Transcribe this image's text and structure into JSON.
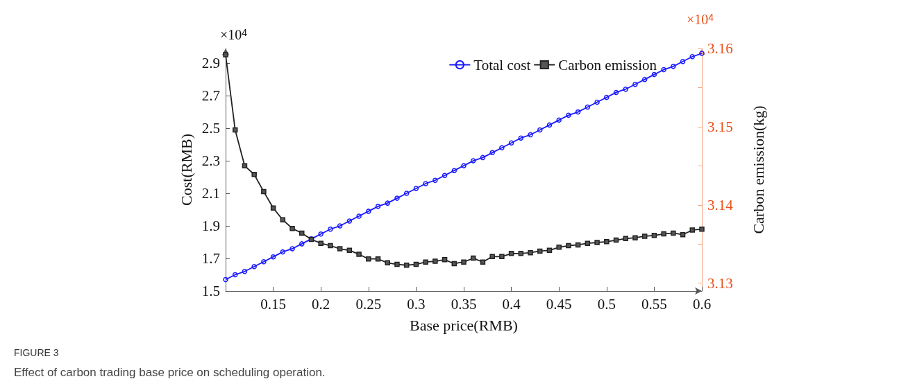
{
  "chart_data": {
    "type": "line",
    "xlabel": "Base price(RMB)",
    "ylabel": "Cost(RMB)",
    "y2label": "Carbon emission(kg)",
    "x": [
      0.1,
      0.11,
      0.12,
      0.13,
      0.14,
      0.15,
      0.16,
      0.17,
      0.18,
      0.19,
      0.2,
      0.21,
      0.22,
      0.23,
      0.24,
      0.25,
      0.26,
      0.27,
      0.28,
      0.29,
      0.3,
      0.31,
      0.32,
      0.33,
      0.34,
      0.35,
      0.36,
      0.37,
      0.38,
      0.39,
      0.4,
      0.41,
      0.42,
      0.43,
      0.44,
      0.45,
      0.46,
      0.47,
      0.48,
      0.49,
      0.5,
      0.51,
      0.52,
      0.53,
      0.54,
      0.55,
      0.56,
      0.57,
      0.58,
      0.59,
      0.6
    ],
    "series": [
      {
        "name": "Total cost",
        "color": "#1a1aff",
        "marker": "circle",
        "values": [
          1.57,
          1.6,
          1.62,
          1.65,
          1.68,
          1.71,
          1.74,
          1.76,
          1.79,
          1.82,
          1.85,
          1.88,
          1.9,
          1.93,
          1.96,
          1.99,
          2.02,
          2.04,
          2.07,
          2.1,
          2.13,
          2.16,
          2.18,
          2.21,
          2.24,
          2.27,
          2.3,
          2.32,
          2.35,
          2.38,
          2.41,
          2.44,
          2.46,
          2.49,
          2.52,
          2.55,
          2.58,
          2.6,
          2.63,
          2.66,
          2.69,
          2.72,
          2.74,
          2.77,
          2.8,
          2.83,
          2.86,
          2.88,
          2.91,
          2.94,
          2.96
        ]
      },
      {
        "name": "Carbon emission",
        "color": "#222222",
        "marker": "square",
        "axis": "y2",
        "values": [
          3.1592,
          3.1496,
          3.145,
          3.1439,
          3.1417,
          3.1396,
          3.1381,
          3.137,
          3.1364,
          3.1356,
          3.1351,
          3.1348,
          3.1344,
          3.1342,
          3.1337,
          3.1331,
          3.1331,
          3.1326,
          3.1324,
          3.1323,
          3.1324,
          3.1327,
          3.1328,
          3.133,
          3.1325,
          3.1327,
          3.1332,
          3.1327,
          3.1334,
          3.1334,
          3.1338,
          3.1338,
          3.1339,
          3.1341,
          3.1342,
          3.1346,
          3.1348,
          3.1349,
          3.1351,
          3.1352,
          3.1353,
          3.1355,
          3.1357,
          3.1358,
          3.136,
          3.1361,
          3.1363,
          3.1364,
          3.1362,
          3.1368,
          3.1369
        ]
      }
    ],
    "xlim": [
      0.1,
      0.6
    ],
    "xticks": [
      0.15,
      0.2,
      0.25,
      0.3,
      0.35,
      0.4,
      0.45,
      0.5,
      0.55,
      0.6
    ],
    "ylim": [
      1.5,
      2.99
    ],
    "yticks": [
      1.5,
      1.7,
      1.9,
      2.1,
      2.3,
      2.5,
      2.7,
      2.9
    ],
    "y2lim": [
      3.129,
      3.16
    ],
    "y2ticks": [
      3.13,
      {
        "value": 3.135,
        "label": null
      },
      3.14,
      {
        "value": 3.145,
        "label": null
      },
      3.15,
      {
        "value": 3.155,
        "label": null
      },
      3.16
    ],
    "grid": false,
    "legend": "top right",
    "line_style": "solid",
    "annotations": [
      "×10$^{4}$",
      "×10$^{4}$",
      "FIGURE 3",
      "Effect of carbon trading base price on scheduling operation."
    ]
  }
}
